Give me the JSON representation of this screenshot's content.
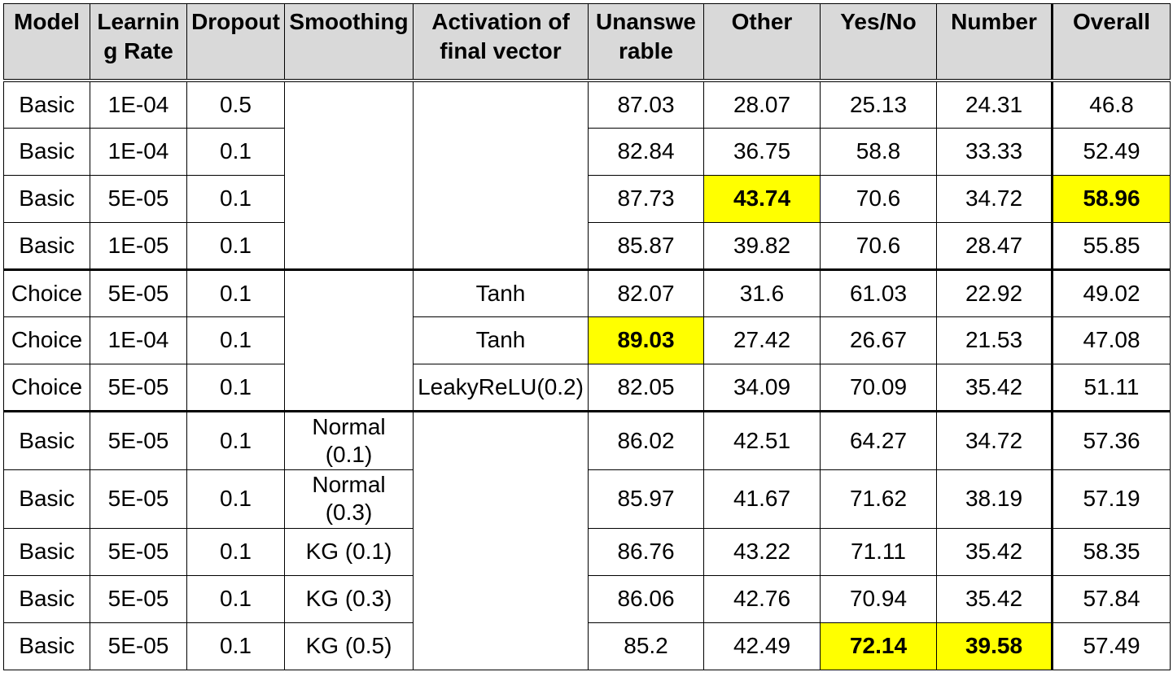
{
  "table": {
    "columns": [
      "Model",
      "Learnin g Rate",
      "Dropout",
      "Smoothing",
      "Activation of final vector",
      "Unanswe rable",
      "Other",
      "Yes/No",
      "Number",
      "Overall"
    ],
    "header_display": {
      "model": "Model",
      "lr_a": "Learnin",
      "lr_b": "g Rate",
      "dropout": "Dropout",
      "smoothing": "Smoothing",
      "act_a": "Activation of",
      "act_b": "final vector",
      "unans_a": "Unanswe",
      "unans_b": "rable",
      "other": "Other",
      "yesno": "Yes/No",
      "number": "Number",
      "overall": "Overall"
    },
    "rows": [
      {
        "model": "Basic",
        "lr": "1E-04",
        "dropout": "0.5",
        "smoothing": "",
        "activation": "",
        "unanswerable": "87.03",
        "other": "28.07",
        "yesno": "25.13",
        "number": "24.31",
        "overall": "46.8"
      },
      {
        "model": "Basic",
        "lr": "1E-04",
        "dropout": "0.1",
        "smoothing": "",
        "activation": "",
        "unanswerable": "82.84",
        "other": "36.75",
        "yesno": "58.8",
        "number": "33.33",
        "overall": "52.49"
      },
      {
        "model": "Basic",
        "lr": "5E-05",
        "dropout": "0.1",
        "smoothing": "",
        "activation": "",
        "unanswerable": "87.73",
        "other": "43.74",
        "yesno": "70.6",
        "number": "34.72",
        "overall": "58.96"
      },
      {
        "model": "Basic",
        "lr": "1E-05",
        "dropout": "0.1",
        "smoothing": "",
        "activation": "",
        "unanswerable": "85.87",
        "other": "39.82",
        "yesno": "70.6",
        "number": "28.47",
        "overall": "55.85"
      },
      {
        "model": "Choice",
        "lr": "5E-05",
        "dropout": "0.1",
        "smoothing": "",
        "activation": "Tanh",
        "unanswerable": "82.07",
        "other": "31.6",
        "yesno": "61.03",
        "number": "22.92",
        "overall": "49.02"
      },
      {
        "model": "Choice",
        "lr": "1E-04",
        "dropout": "0.1",
        "smoothing": "",
        "activation": "Tanh",
        "unanswerable": "89.03",
        "other": "27.42",
        "yesno": "26.67",
        "number": "21.53",
        "overall": "47.08"
      },
      {
        "model": "Choice",
        "lr": "5E-05",
        "dropout": "0.1",
        "smoothing": "",
        "activation": "LeakyReLU(0.2)",
        "unanswerable": "82.05",
        "other": "34.09",
        "yesno": "70.09",
        "number": "35.42",
        "overall": "51.11"
      },
      {
        "model": "Basic",
        "lr": "5E-05",
        "dropout": "0.1",
        "smoothing_a": "Normal",
        "smoothing_b": "(0.1)",
        "activation": "",
        "unanswerable": "86.02",
        "other": "42.51",
        "yesno": "64.27",
        "number": "34.72",
        "overall": "57.36"
      },
      {
        "model": "Basic",
        "lr": "5E-05",
        "dropout": "0.1",
        "smoothing_a": "Normal",
        "smoothing_b": "(0.3)",
        "activation": "",
        "unanswerable": "85.97",
        "other": "41.67",
        "yesno": "71.62",
        "number": "38.19",
        "overall": "57.19"
      },
      {
        "model": "Basic",
        "lr": "5E-05",
        "dropout": "0.1",
        "smoothing": "KG (0.1)",
        "activation": "",
        "unanswerable": "86.76",
        "other": "43.22",
        "yesno": "71.11",
        "number": "35.42",
        "overall": "58.35"
      },
      {
        "model": "Basic",
        "lr": "5E-05",
        "dropout": "0.1",
        "smoothing": "KG (0.3)",
        "activation": "",
        "unanswerable": "86.06",
        "other": "42.76",
        "yesno": "70.94",
        "number": "35.42",
        "overall": "57.84"
      },
      {
        "model": "Basic",
        "lr": "5E-05",
        "dropout": "0.1",
        "smoothing": "KG (0.5)",
        "activation": "",
        "unanswerable": "85.2",
        "other": "42.49",
        "yesno": "72.14",
        "number": "39.58",
        "overall": "57.49"
      }
    ],
    "highlight_color": "#ffff00",
    "header_background": "#d9d9d9"
  }
}
